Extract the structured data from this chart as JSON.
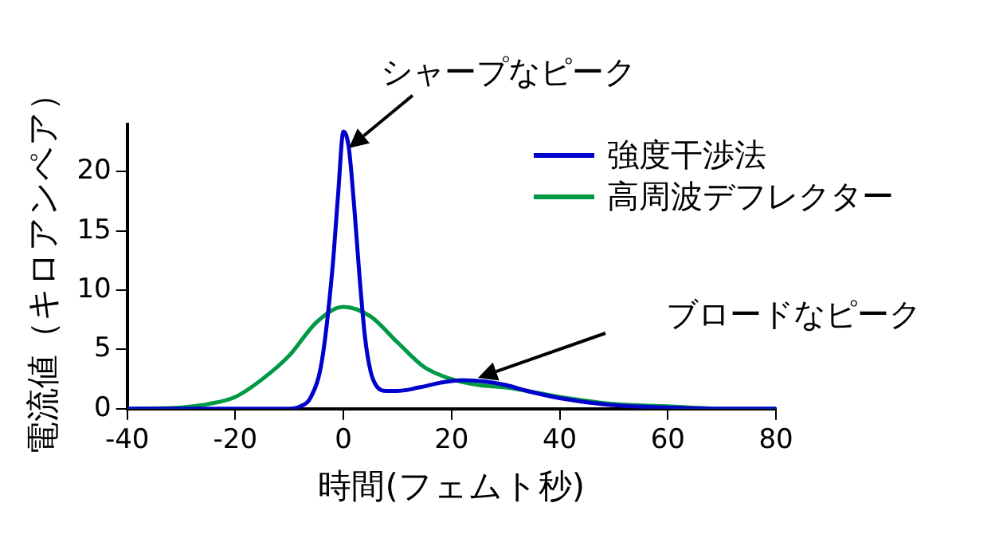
{
  "chart_data": {
    "type": "line",
    "xlabel": "時間(フェムト秒)",
    "ylabel": "電流値（キロアンペア）",
    "xlim": [
      -40,
      80
    ],
    "xticks": [
      -40,
      -20,
      0,
      20,
      40,
      60,
      80
    ],
    "ylim": [
      0,
      24
    ],
    "yticks": [
      0,
      5,
      10,
      15,
      20
    ],
    "grid": false,
    "legend": "top right",
    "marker": "none",
    "line_style": "solid",
    "annotations": [
      {
        "text": "シャープなピーク",
        "x": 1,
        "y": 22
      },
      "ブロードなピーク"
    ],
    "series": [
      {
        "name": "強度干渉法",
        "color": "#0000cc",
        "x": [
          -40,
          -10,
          -8,
          -6,
          -4,
          -2,
          -1,
          0,
          1,
          2,
          3,
          4,
          5,
          6,
          8,
          10,
          14,
          18,
          22,
          26,
          30,
          34,
          40,
          50,
          60,
          70,
          80
        ],
        "values": [
          0,
          0,
          0.2,
          1,
          4,
          12,
          18,
          23.4,
          22,
          17,
          11,
          6,
          3.2,
          2,
          1.5,
          1.5,
          1.8,
          2.2,
          2.4,
          2.3,
          2,
          1.5,
          0.9,
          0.3,
          0.1,
          0,
          0
        ]
      },
      {
        "name": "高周波デフレクター",
        "color": "#009944",
        "x": [
          -40,
          -30,
          -25,
          -20,
          -15,
          -10,
          -5,
          0,
          5,
          10,
          15,
          20,
          25,
          30,
          40,
          50,
          60,
          70,
          80
        ],
        "values": [
          0,
          0.1,
          0.4,
          1,
          2.5,
          4.5,
          7.3,
          8.6,
          7.8,
          5.6,
          3.5,
          2.5,
          2,
          1.8,
          1,
          0.4,
          0.2,
          0,
          0
        ]
      }
    ]
  }
}
